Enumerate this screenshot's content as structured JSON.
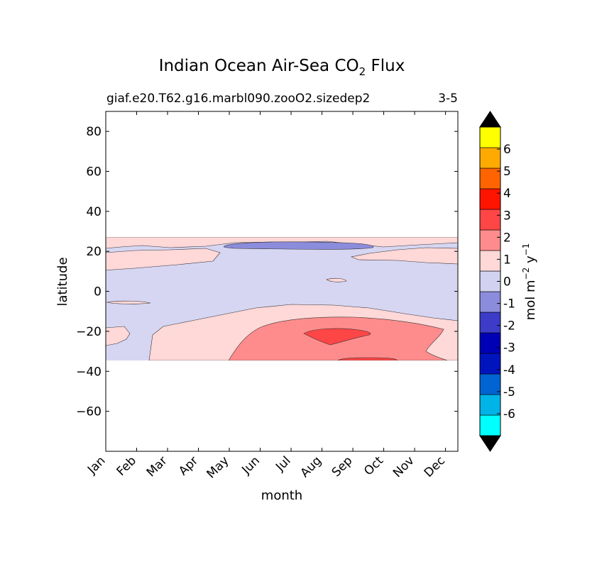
{
  "chart_data": {
    "type": "contourf",
    "title_main": "Indian Ocean Air-Sea CO",
    "title_sub": "2",
    "title_end": " Flux",
    "subtitle_left": "giaf.e20.T62.g16.marbl090.zooO2.sizedep2",
    "subtitle_right": "3-5",
    "xlabel": "month",
    "ylabel": "latitude",
    "x_ticks": [
      "Jan",
      "Feb",
      "Mar",
      "Apr",
      "May",
      "Jun",
      "Jul",
      "Aug",
      "Sep",
      "Oct",
      "Nov",
      "Dec"
    ],
    "x_range": [
      0,
      11.4
    ],
    "ylim": [
      -80,
      90
    ],
    "y_ticks": [
      80,
      60,
      40,
      20,
      0,
      -20,
      -40,
      -60
    ],
    "y_tick_labels": [
      "80",
      "60",
      "40",
      "20",
      "0",
      "−20",
      "−40",
      "−60"
    ],
    "data_lat_range": [
      -34,
      27
    ],
    "colorbar": {
      "label_main": "mol m",
      "label_exp1": "−2",
      "label_mid": " y",
      "label_exp2": "−1",
      "levels": [
        -7,
        -6,
        -5,
        -4,
        -3,
        -2,
        -1,
        0,
        1,
        2,
        3,
        4,
        5,
        6,
        7
      ],
      "tick_values": [
        -6,
        -5,
        -4,
        -3,
        -2,
        -1,
        0,
        1,
        2,
        3,
        4,
        5,
        6
      ],
      "tick_labels": [
        "-6",
        "-5",
        "-4",
        "-3",
        "-2",
        "-1",
        "0",
        "1",
        "2",
        "3",
        "4",
        "5",
        "6"
      ],
      "colors": [
        "#00ffff",
        "#00b4e8",
        "#0064d2",
        "#0014be",
        "#0000b4",
        "#3c3cc8",
        "#8c8cdc",
        "#d2d2f0",
        "#ffd8d8",
        "#ff8c8c",
        "#ff4646",
        "#ff1400",
        "#ff6400",
        "#ffaa00",
        "#ffff00"
      ],
      "under_color": "#000000",
      "over_color": "#000000"
    },
    "regions": [
      {
        "name": "background-negative",
        "level": "-1 to 0",
        "color": "#d6d6f2"
      },
      {
        "name": "north-band-positive",
        "level": "0 to 1",
        "color": "#ffd8d8"
      },
      {
        "name": "northern-strong-sink",
        "level": "-2 to -1",
        "color": "#8c8cdc"
      },
      {
        "name": "southern-band-positive",
        "level": "0 to 1",
        "color": "#ffd8d8"
      },
      {
        "name": "southern-source",
        "level": "1 to 2",
        "color": "#ff8c8c"
      },
      {
        "name": "southern-core",
        "level": "2 to 3",
        "color": "#ff4646"
      }
    ]
  }
}
